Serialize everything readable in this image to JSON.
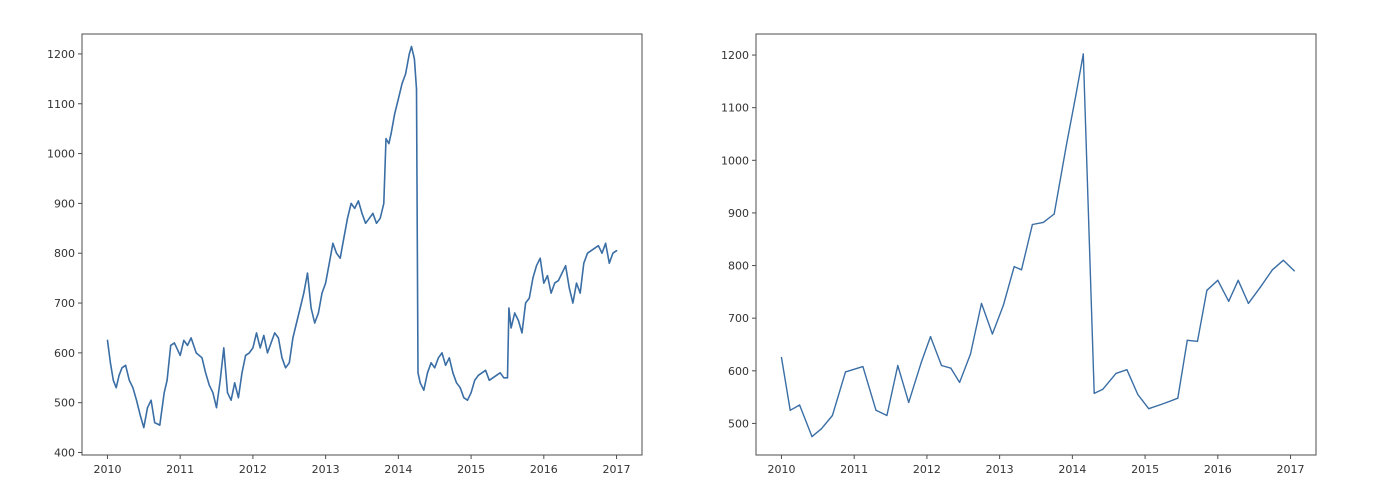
{
  "chart_data": [
    {
      "type": "line",
      "title": "",
      "xlabel": "",
      "ylabel": "",
      "xlim": [
        2009.65,
        2017.35
      ],
      "ylim": [
        395,
        1240
      ],
      "xticks": [
        2010,
        2011,
        2012,
        2013,
        2014,
        2015,
        2016,
        2017
      ],
      "xtick_labels": [
        "2010",
        "2011",
        "2012",
        "2013",
        "2014",
        "2015",
        "2016",
        "2017"
      ],
      "yticks": [
        400,
        500,
        600,
        700,
        800,
        900,
        1000,
        1100,
        1200
      ],
      "ytick_labels": [
        "400",
        "500",
        "600",
        "700",
        "800",
        "900",
        "1000",
        "1100",
        "1200"
      ],
      "grid": false,
      "color": "#3a6ea5",
      "series": [
        {
          "name": "",
          "x": [
            2010.0,
            2010.04,
            2010.08,
            2010.12,
            2010.16,
            2010.2,
            2010.25,
            2010.3,
            2010.35,
            2010.4,
            2010.45,
            2010.5,
            2010.55,
            2010.6,
            2010.65,
            2010.72,
            2010.78,
            2010.82,
            2010.87,
            2010.92,
            2011.0,
            2011.05,
            2011.1,
            2011.15,
            2011.22,
            2011.3,
            2011.35,
            2011.4,
            2011.45,
            2011.5,
            2011.55,
            2011.6,
            2011.65,
            2011.7,
            2011.75,
            2011.8,
            2011.85,
            2011.9,
            2011.95,
            2012.0,
            2012.05,
            2012.1,
            2012.15,
            2012.2,
            2012.25,
            2012.3,
            2012.35,
            2012.4,
            2012.45,
            2012.5,
            2012.55,
            2012.6,
            2012.65,
            2012.7,
            2012.75,
            2012.8,
            2012.85,
            2012.9,
            2012.95,
            2013.0,
            2013.05,
            2013.1,
            2013.15,
            2013.2,
            2013.25,
            2013.3,
            2013.35,
            2013.4,
            2013.45,
            2013.5,
            2013.55,
            2013.6,
            2013.65,
            2013.7,
            2013.75,
            2013.8,
            2013.83,
            2013.87,
            2013.9,
            2013.95,
            2014.0,
            2014.05,
            2014.1,
            2014.15,
            2014.18,
            2014.22,
            2014.25,
            2014.27,
            2014.3,
            2014.35,
            2014.4,
            2014.45,
            2014.5,
            2014.55,
            2014.6,
            2014.65,
            2014.7,
            2014.75,
            2014.8,
            2014.85,
            2014.9,
            2014.95,
            2015.0,
            2015.05,
            2015.1,
            2015.15,
            2015.2,
            2015.25,
            2015.3,
            2015.35,
            2015.4,
            2015.45,
            2015.5,
            2015.52,
            2015.55,
            2015.6,
            2015.65,
            2015.7,
            2015.75,
            2015.8,
            2015.85,
            2015.9,
            2015.95,
            2016.0,
            2016.05,
            2016.1,
            2016.15,
            2016.2,
            2016.25,
            2016.3,
            2016.35,
            2016.4,
            2016.45,
            2016.5,
            2016.55,
            2016.6,
            2016.65,
            2016.7,
            2016.75,
            2016.8,
            2016.85,
            2016.9,
            2016.95,
            2017.0
          ],
          "y": [
            625,
            580,
            545,
            530,
            555,
            570,
            575,
            545,
            530,
            505,
            475,
            450,
            490,
            505,
            460,
            455,
            520,
            545,
            615,
            620,
            595,
            625,
            615,
            630,
            600,
            590,
            560,
            535,
            520,
            490,
            545,
            610,
            520,
            505,
            540,
            510,
            560,
            595,
            600,
            610,
            640,
            610,
            635,
            600,
            620,
            640,
            630,
            590,
            570,
            580,
            630,
            660,
            690,
            720,
            760,
            690,
            660,
            680,
            720,
            740,
            780,
            820,
            800,
            790,
            830,
            870,
            900,
            890,
            905,
            880,
            860,
            870,
            880,
            860,
            870,
            900,
            1030,
            1020,
            1040,
            1080,
            1110,
            1140,
            1160,
            1200,
            1215,
            1190,
            1130,
            560,
            540,
            525,
            560,
            580,
            570,
            590,
            600,
            575,
            590,
            560,
            540,
            530,
            510,
            505,
            520,
            545,
            555,
            560,
            565,
            545,
            550,
            555,
            560,
            550,
            550,
            690,
            650,
            680,
            665,
            640,
            700,
            710,
            750,
            775,
            790,
            740,
            755,
            720,
            740,
            745,
            760,
            775,
            730,
            700,
            740,
            720,
            780,
            800,
            805,
            810,
            815,
            800,
            820,
            780,
            800,
            805
          ]
        }
      ]
    },
    {
      "type": "line",
      "title": "",
      "xlabel": "",
      "ylabel": "",
      "xlim": [
        2009.65,
        2017.35
      ],
      "ylim": [
        440,
        1240
      ],
      "xticks": [
        2010,
        2011,
        2012,
        2013,
        2014,
        2015,
        2016,
        2017
      ],
      "xtick_labels": [
        "2010",
        "2011",
        "2012",
        "2013",
        "2014",
        "2015",
        "2016",
        "2017"
      ],
      "yticks": [
        500,
        600,
        700,
        800,
        900,
        1000,
        1100,
        1200
      ],
      "ytick_labels": [
        "500",
        "600",
        "700",
        "800",
        "900",
        "1000",
        "1100",
        "1200"
      ],
      "grid": false,
      "color": "#3a6ea5",
      "series": [
        {
          "name": "",
          "x": [
            2010.0,
            2010.12,
            2010.25,
            2010.42,
            2010.55,
            2010.7,
            2010.88,
            2011.12,
            2011.3,
            2011.45,
            2011.6,
            2011.75,
            2011.92,
            2012.05,
            2012.2,
            2012.33,
            2012.45,
            2012.6,
            2012.75,
            2012.9,
            2013.05,
            2013.2,
            2013.3,
            2013.45,
            2013.6,
            2013.75,
            2013.92,
            2014.05,
            2014.15,
            2014.3,
            2014.42,
            2014.6,
            2014.75,
            2014.9,
            2015.05,
            2015.2,
            2015.3,
            2015.45,
            2015.58,
            2015.72,
            2015.85,
            2016.0,
            2016.15,
            2016.28,
            2016.42,
            2016.58,
            2016.75,
            2016.9,
            2017.05
          ],
          "y": [
            625,
            525,
            535,
            475,
            490,
            515,
            598,
            608,
            525,
            515,
            610,
            540,
            615,
            665,
            610,
            605,
            578,
            632,
            728,
            670,
            724,
            798,
            792,
            878,
            882,
            898,
            1030,
            1125,
            1202,
            557,
            565,
            595,
            602,
            555,
            528,
            535,
            540,
            548,
            658,
            656,
            753,
            772,
            732,
            772,
            728,
            758,
            792,
            810,
            790
          ]
        }
      ]
    }
  ]
}
